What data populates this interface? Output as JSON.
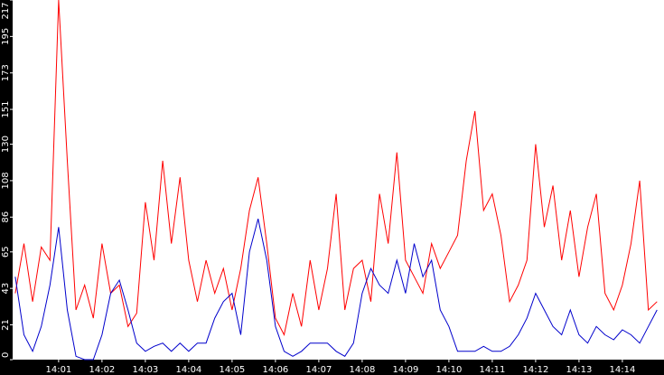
{
  "chart_data": {
    "type": "line",
    "x": [
      0,
      0.2,
      0.4,
      0.6,
      0.8,
      1,
      1.2,
      1.4,
      1.6,
      1.8,
      2,
      2.2,
      2.4,
      2.6,
      2.8,
      3,
      3.2,
      3.4,
      3.6,
      3.8,
      4,
      4.2,
      4.4,
      4.6,
      4.8,
      5,
      5.2,
      5.4,
      5.6,
      5.8,
      6,
      6.2,
      6.4,
      6.6,
      6.8,
      7,
      7.2,
      7.4,
      7.6,
      7.8,
      8,
      8.2,
      8.4,
      8.6,
      8.8,
      9,
      9.2,
      9.4,
      9.6,
      9.8,
      10,
      10.2,
      10.4,
      10.6,
      10.8,
      11,
      11.2,
      11.4,
      11.6,
      11.8,
      12,
      12.2,
      12.4,
      12.6,
      12.8,
      13,
      13.2,
      13.4,
      13.6,
      13.8,
      14,
      14.2,
      14.4,
      14.6,
      14.8
    ],
    "series": [
      {
        "color": "#ff0000",
        "values": [
          40,
          70,
          35,
          68,
          60,
          217,
          120,
          30,
          45,
          25,
          70,
          40,
          45,
          20,
          28,
          95,
          60,
          120,
          70,
          110,
          60,
          35,
          60,
          40,
          55,
          30,
          55,
          90,
          110,
          70,
          25,
          15,
          40,
          20,
          60,
          30,
          55,
          100,
          30,
          55,
          60,
          35,
          100,
          70,
          125,
          60,
          50,
          40,
          70,
          55,
          65,
          75,
          120,
          150,
          90,
          100,
          75,
          35,
          45,
          60,
          130,
          80,
          105,
          60,
          90,
          50,
          80,
          100,
          40,
          30,
          45,
          70,
          108,
          30,
          35
        ]
      },
      {
        "color": "#0000cc",
        "values": [
          50,
          15,
          5,
          20,
          45,
          80,
          30,
          2,
          0,
          0,
          15,
          40,
          48,
          30,
          10,
          5,
          8,
          10,
          5,
          10,
          5,
          10,
          10,
          25,
          35,
          40,
          15,
          65,
          85,
          60,
          20,
          5,
          2,
          5,
          10,
          10,
          10,
          5,
          2,
          10,
          40,
          55,
          45,
          40,
          60,
          40,
          70,
          50,
          60,
          30,
          20,
          5,
          5,
          5,
          8,
          5,
          5,
          8,
          15,
          25,
          40,
          30,
          20,
          15,
          30,
          15,
          10,
          20,
          15,
          12,
          18,
          15,
          10,
          20,
          30
        ]
      }
    ],
    "xlim": [
      -0.06,
      14.96
    ],
    "xticks": [
      {
        "value": 1,
        "label": "14:01"
      },
      {
        "value": 2,
        "label": "14:02"
      },
      {
        "value": 3,
        "label": "14:03"
      },
      {
        "value": 4,
        "label": "14:04"
      },
      {
        "value": 5,
        "label": "14:05"
      },
      {
        "value": 6,
        "label": "14:06"
      },
      {
        "value": 7,
        "label": "14:07"
      },
      {
        "value": 8,
        "label": "14:08"
      },
      {
        "value": 9,
        "label": "14:09"
      },
      {
        "value": 10,
        "label": "14:10"
      },
      {
        "value": 11,
        "label": "14:11"
      },
      {
        "value": 12,
        "label": "14:12"
      },
      {
        "value": 13,
        "label": "14:13"
      },
      {
        "value": 14,
        "label": "14:14"
      }
    ],
    "ylim": [
      0,
      217
    ],
    "yticks": [
      0,
      21,
      43,
      65,
      86,
      108,
      130,
      151,
      173,
      195,
      217
    ]
  }
}
